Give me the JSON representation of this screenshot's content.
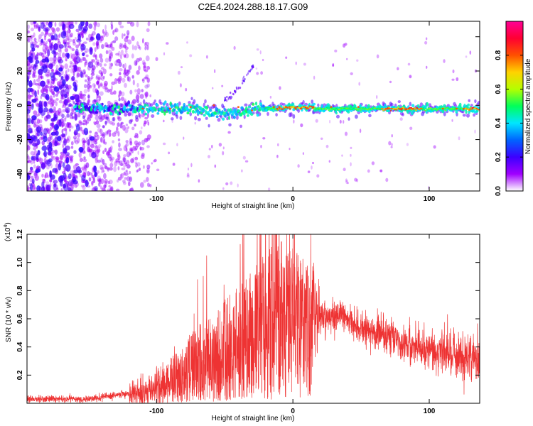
{
  "figure": {
    "title": "C2E4.2024.288.18.17.G09"
  },
  "chart_data": [
    {
      "type": "heatmap",
      "name": "spectrogram",
      "xlabel": "Height of straight line (km)",
      "ylabel": "Frequency (Hz)",
      "xlim": [
        -195,
        137
      ],
      "ylim": [
        -50,
        49
      ],
      "xticks": [
        -100,
        0,
        100
      ],
      "yticks": [
        -40,
        -20,
        0,
        20,
        40
      ],
      "colorbar": {
        "label": "Normalized spectral amplitude",
        "range": [
          0,
          1
        ],
        "ticks": [
          "0.0",
          "0.2",
          "0.4",
          "0.6",
          "0.8"
        ],
        "colors": [
          "#ffffff",
          "#a000ff",
          "#3c00ff",
          "#0064ff",
          "#00e6ff",
          "#00ff5a",
          "#b4ff00",
          "#ffd200",
          "#ff5000",
          "#ff0032",
          "#ff0096"
        ]
      },
      "features": {
        "noise_region_x": [
          -195,
          -115
        ],
        "signal_band_center_hz": -2,
        "strong_signal_x": [
          -20,
          137
        ],
        "dispersed_trace": {
          "x": [
            -50,
            -28
          ],
          "y": [
            3,
            25
          ]
        }
      }
    },
    {
      "type": "line",
      "name": "snr",
      "xlabel": "Height of straight line (km)",
      "ylabel": "SNR (10 * v/v)",
      "scale_label": "(x10",
      "scale_exponent": "4",
      "xlim": [
        -195,
        137
      ],
      "ylim": [
        0,
        1.2
      ],
      "xticks": [
        -100,
        0,
        100
      ],
      "yticks": [
        "0.2",
        "0.4",
        "0.6",
        "0.8",
        "1.0",
        "1.2"
      ],
      "color": "#ee3333",
      "envelope": {
        "x": [
          -195,
          -150,
          -120,
          -100,
          -80,
          -60,
          -40,
          -30,
          -20,
          -10,
          0,
          10,
          20,
          30,
          40,
          50,
          60,
          70,
          80,
          90,
          100,
          110,
          120,
          130,
          137
        ],
        "y": [
          0.03,
          0.03,
          0.07,
          0.11,
          0.17,
          0.26,
          0.35,
          0.42,
          0.5,
          0.56,
          0.62,
          0.62,
          0.62,
          0.62,
          0.6,
          0.53,
          0.5,
          0.47,
          0.44,
          0.41,
          0.38,
          0.36,
          0.35,
          0.33,
          0.33
        ]
      },
      "peak": {
        "x": -12,
        "y": 1.2
      }
    }
  ]
}
